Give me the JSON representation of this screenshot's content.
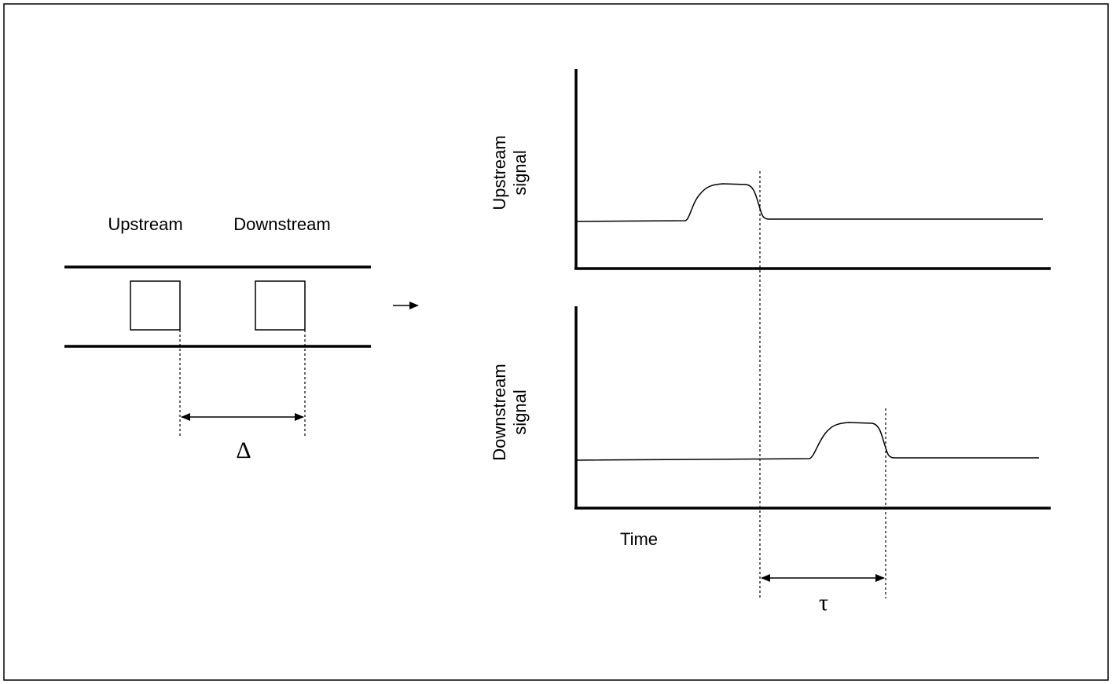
{
  "left": {
    "labels": [
      "Upstream",
      "Downstream"
    ],
    "distance_label": "Δ"
  },
  "right": {
    "plots": [
      {
        "ylabel": [
          "Upstream",
          "signal"
        ]
      },
      {
        "ylabel": [
          "Downstream",
          "signal"
        ]
      }
    ],
    "xlabel": "Time",
    "delay_label": "τ"
  }
}
